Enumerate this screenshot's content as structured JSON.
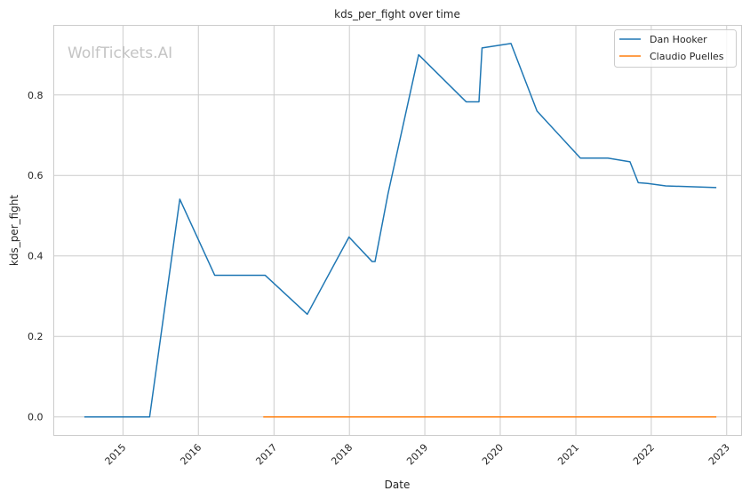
{
  "chart_data": {
    "type": "line",
    "title": "kds_per_fight over time",
    "xlabel": "Date",
    "ylabel": "kds_per_fight",
    "watermark": "WolfTickets.AI",
    "xlim": [
      "2014-01-31",
      "2023-03-14"
    ],
    "ylim": [
      -0.046,
      0.973
    ],
    "x_ticks": [
      "2015",
      "2016",
      "2017",
      "2018",
      "2019",
      "2020",
      "2021",
      "2022",
      "2023"
    ],
    "y_ticks": [
      "0.0",
      "0.2",
      "0.4",
      "0.6",
      "0.8"
    ],
    "grid": true,
    "legend_position": "top-right",
    "series": [
      {
        "name": "Dan Hooker",
        "color": "#1f77b4",
        "points": [
          [
            "2014-06-28",
            0.0
          ],
          [
            "2015-05-10",
            0.0
          ],
          [
            "2015-10-03",
            0.541
          ],
          [
            "2016-03-20",
            0.352
          ],
          [
            "2016-11-19",
            0.352
          ],
          [
            "2017-06-11",
            0.255
          ],
          [
            "2017-12-30",
            0.447
          ],
          [
            "2018-04-21",
            0.386
          ],
          [
            "2018-05-05",
            0.386
          ],
          [
            "2018-07-07",
            0.555
          ],
          [
            "2018-12-02",
            0.9
          ],
          [
            "2019-07-20",
            0.783
          ],
          [
            "2019-09-20",
            0.783
          ],
          [
            "2019-10-05",
            0.917
          ],
          [
            "2020-02-22",
            0.928
          ],
          [
            "2020-06-27",
            0.76
          ],
          [
            "2021-01-23",
            0.643
          ],
          [
            "2021-06-05",
            0.643
          ],
          [
            "2021-09-20",
            0.634
          ],
          [
            "2021-10-30",
            0.582
          ],
          [
            "2021-12-15",
            0.58
          ],
          [
            "2022-03-12",
            0.574
          ],
          [
            "2022-11-12",
            0.57
          ]
        ]
      },
      {
        "name": "Claudio Puelles",
        "color": "#ff7f0e",
        "points": [
          [
            "2016-11-10",
            0.0
          ],
          [
            "2022-11-12",
            0.0
          ]
        ]
      }
    ]
  }
}
